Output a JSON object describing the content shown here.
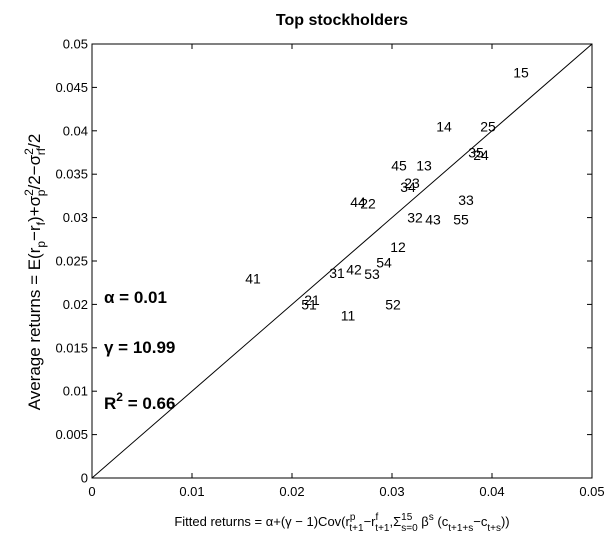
{
  "chart_data": {
    "type": "scatter",
    "title": "Top stockholders",
    "ylabel": "Average returns = E(r_p − r_f) + σ²_p/2 − σ²_rf/2",
    "xlabel": "Fitted returns = α+(γ − 1)Cov(r^p_{t+1}−r^f_{t+1},Σ^{15}_{s=0} β^s (c_{t+1+s}−c_{t+s}))",
    "xlim": [
      0,
      0.05
    ],
    "ylim": [
      0,
      0.05
    ],
    "x_ticks": [
      "0",
      "0.01",
      "0.02",
      "0.03",
      "0.04",
      "0.05"
    ],
    "y_ticks": [
      "0",
      "0.005",
      "0.01",
      "0.015",
      "0.02",
      "0.025",
      "0.03",
      "0.035",
      "0.04",
      "0.045",
      "0.05"
    ],
    "reference_line": {
      "from": [
        0,
        0
      ],
      "to": [
        0.05,
        0.05
      ]
    },
    "points": [
      {
        "label": "15",
        "x": 0.0429,
        "y": 0.0467
      },
      {
        "label": "14",
        "x": 0.0352,
        "y": 0.0405
      },
      {
        "label": "25",
        "x": 0.0396,
        "y": 0.0405
      },
      {
        "label": "35",
        "x": 0.0384,
        "y": 0.0375
      },
      {
        "label": "24",
        "x": 0.0389,
        "y": 0.0372
      },
      {
        "label": "45",
        "x": 0.0307,
        "y": 0.036
      },
      {
        "label": "13",
        "x": 0.0332,
        "y": 0.036
      },
      {
        "label": "23",
        "x": 0.032,
        "y": 0.034
      },
      {
        "label": "34",
        "x": 0.0316,
        "y": 0.0335
      },
      {
        "label": "33",
        "x": 0.0374,
        "y": 0.032
      },
      {
        "label": "44",
        "x": 0.0266,
        "y": 0.0318
      },
      {
        "label": "22",
        "x": 0.0276,
        "y": 0.0316
      },
      {
        "label": "32",
        "x": 0.0323,
        "y": 0.03
      },
      {
        "label": "43",
        "x": 0.0341,
        "y": 0.0298
      },
      {
        "label": "55",
        "x": 0.0369,
        "y": 0.0298
      },
      {
        "label": "12",
        "x": 0.0306,
        "y": 0.0266
      },
      {
        "label": "54",
        "x": 0.0292,
        "y": 0.0248
      },
      {
        "label": "42",
        "x": 0.0262,
        "y": 0.024
      },
      {
        "label": "31",
        "x": 0.0245,
        "y": 0.0236
      },
      {
        "label": "53",
        "x": 0.028,
        "y": 0.0235
      },
      {
        "label": "41",
        "x": 0.0161,
        "y": 0.023
      },
      {
        "label": "21",
        "x": 0.022,
        "y": 0.0205
      },
      {
        "label": "51",
        "x": 0.0217,
        "y": 0.02
      },
      {
        "label": "52",
        "x": 0.0301,
        "y": 0.02
      },
      {
        "label": "11",
        "x": 0.0256,
        "y": 0.0187
      }
    ],
    "annotations": {
      "alpha": "α = 0.01",
      "gamma": "γ = 10.99",
      "r2_prefix": "R",
      "r2_sup": "2",
      "r2_value": " = 0.66"
    }
  }
}
